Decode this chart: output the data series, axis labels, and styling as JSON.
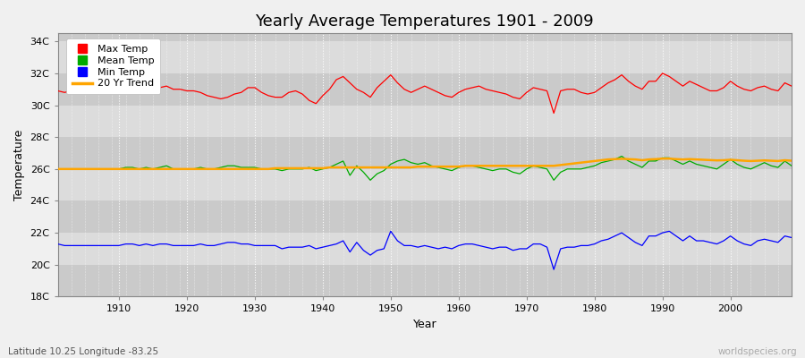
{
  "title": "Yearly Average Temperatures 1901 - 2009",
  "xlabel": "Year",
  "ylabel": "Temperature",
  "bottom_left": "Latitude 10.25 Longitude -83.25",
  "bottom_right": "worldspecies.org",
  "years_start": 1901,
  "years_end": 2009,
  "yticks": [
    18,
    20,
    22,
    24,
    26,
    28,
    30,
    32,
    34
  ],
  "ytick_labels": [
    "18C",
    "20C",
    "22C",
    "24C",
    "26C",
    "28C",
    "30C",
    "32C",
    "34C"
  ],
  "xticks": [
    1910,
    1920,
    1930,
    1940,
    1950,
    1960,
    1970,
    1980,
    1990,
    2000
  ],
  "ylim": [
    18,
    34.5
  ],
  "xlim": [
    1901,
    2009
  ],
  "bg_color": "#f0f0f0",
  "band_light": "#dcdcdc",
  "band_dark": "#cacaca",
  "grid_color_v": "#ffffff",
  "max_temp_color": "#ff0000",
  "mean_temp_color": "#00aa00",
  "min_temp_color": "#0000ff",
  "trend_color": "#ffa500",
  "legend_labels": [
    "Max Temp",
    "Mean Temp",
    "Min Temp",
    "20 Yr Trend"
  ],
  "legend_colors": [
    "#ff0000",
    "#00aa00",
    "#0000ff",
    "#ffa500"
  ],
  "max_temp": [
    30.9,
    30.8,
    30.9,
    30.9,
    30.9,
    30.8,
    30.9,
    30.9,
    30.8,
    30.9,
    31.0,
    31.1,
    30.9,
    31.2,
    31.0,
    31.1,
    31.2,
    31.0,
    31.0,
    30.9,
    30.9,
    30.8,
    30.6,
    30.5,
    30.4,
    30.5,
    30.7,
    30.8,
    31.1,
    31.1,
    30.8,
    30.6,
    30.5,
    30.5,
    30.8,
    30.9,
    30.7,
    30.3,
    30.1,
    30.6,
    31.0,
    31.6,
    31.8,
    31.4,
    31.0,
    30.8,
    30.5,
    31.1,
    31.5,
    31.9,
    31.4,
    31.0,
    30.8,
    31.0,
    31.2,
    31.0,
    30.8,
    30.6,
    30.5,
    30.8,
    31.0,
    31.1,
    31.2,
    31.0,
    30.9,
    30.8,
    30.7,
    30.5,
    30.4,
    30.8,
    31.1,
    31.0,
    30.9,
    29.5,
    30.9,
    31.0,
    31.0,
    30.8,
    30.7,
    30.8,
    31.1,
    31.4,
    31.6,
    31.9,
    31.5,
    31.2,
    31.0,
    31.5,
    31.5,
    32.0,
    31.8,
    31.5,
    31.2,
    31.5,
    31.3,
    31.1,
    30.9,
    30.9,
    31.1,
    31.5,
    31.2,
    31.0,
    30.9,
    31.1,
    31.2,
    31.0,
    30.9,
    31.4,
    31.2
  ],
  "mean_temp": [
    26.0,
    26.0,
    26.0,
    26.0,
    26.0,
    26.0,
    26.0,
    26.0,
    26.0,
    26.0,
    26.1,
    26.1,
    26.0,
    26.1,
    26.0,
    26.1,
    26.2,
    26.0,
    26.0,
    26.0,
    26.0,
    26.1,
    26.0,
    26.0,
    26.1,
    26.2,
    26.2,
    26.1,
    26.1,
    26.1,
    26.0,
    26.0,
    26.0,
    25.9,
    26.0,
    26.0,
    26.0,
    26.1,
    25.9,
    26.0,
    26.1,
    26.3,
    26.5,
    25.6,
    26.2,
    25.8,
    25.3,
    25.7,
    25.9,
    26.3,
    26.5,
    26.6,
    26.4,
    26.3,
    26.4,
    26.2,
    26.1,
    26.0,
    25.9,
    26.1,
    26.2,
    26.2,
    26.1,
    26.0,
    25.9,
    26.0,
    26.0,
    25.8,
    25.7,
    26.0,
    26.2,
    26.1,
    26.0,
    25.3,
    25.8,
    26.0,
    26.0,
    26.0,
    26.1,
    26.2,
    26.4,
    26.5,
    26.6,
    26.8,
    26.5,
    26.3,
    26.1,
    26.5,
    26.5,
    26.7,
    26.7,
    26.5,
    26.3,
    26.5,
    26.3,
    26.2,
    26.1,
    26.0,
    26.3,
    26.6,
    26.3,
    26.1,
    26.0,
    26.2,
    26.4,
    26.2,
    26.1,
    26.5,
    26.2
  ],
  "min_temp": [
    21.3,
    21.2,
    21.2,
    21.2,
    21.2,
    21.2,
    21.2,
    21.2,
    21.2,
    21.2,
    21.3,
    21.3,
    21.2,
    21.3,
    21.2,
    21.3,
    21.3,
    21.2,
    21.2,
    21.2,
    21.2,
    21.3,
    21.2,
    21.2,
    21.3,
    21.4,
    21.4,
    21.3,
    21.3,
    21.2,
    21.2,
    21.2,
    21.2,
    21.0,
    21.1,
    21.1,
    21.1,
    21.2,
    21.0,
    21.1,
    21.2,
    21.3,
    21.5,
    20.8,
    21.4,
    20.9,
    20.6,
    20.9,
    21.0,
    22.1,
    21.5,
    21.2,
    21.2,
    21.1,
    21.2,
    21.1,
    21.0,
    21.1,
    21.0,
    21.2,
    21.3,
    21.3,
    21.2,
    21.1,
    21.0,
    21.1,
    21.1,
    20.9,
    21.0,
    21.0,
    21.3,
    21.3,
    21.1,
    19.7,
    21.0,
    21.1,
    21.1,
    21.2,
    21.2,
    21.3,
    21.5,
    21.6,
    21.8,
    22.0,
    21.7,
    21.4,
    21.2,
    21.8,
    21.8,
    22.0,
    22.1,
    21.8,
    21.5,
    21.8,
    21.5,
    21.5,
    21.4,
    21.3,
    21.5,
    21.8,
    21.5,
    21.3,
    21.2,
    21.5,
    21.6,
    21.5,
    21.4,
    21.8,
    21.7
  ],
  "trend": [
    26.0,
    26.0,
    26.0,
    26.0,
    26.0,
    26.0,
    26.0,
    26.0,
    26.0,
    26.0,
    26.0,
    26.0,
    26.0,
    26.0,
    26.0,
    26.0,
    26.0,
    26.0,
    26.0,
    26.0,
    26.0,
    26.0,
    26.0,
    26.0,
    26.0,
    26.0,
    26.0,
    26.0,
    26.0,
    26.0,
    26.0,
    26.0,
    26.05,
    26.05,
    26.05,
    26.05,
    26.05,
    26.05,
    26.05,
    26.05,
    26.1,
    26.1,
    26.1,
    26.1,
    26.1,
    26.1,
    26.1,
    26.1,
    26.1,
    26.1,
    26.1,
    26.1,
    26.1,
    26.15,
    26.15,
    26.15,
    26.15,
    26.15,
    26.15,
    26.15,
    26.2,
    26.2,
    26.2,
    26.2,
    26.2,
    26.2,
    26.2,
    26.2,
    26.2,
    26.2,
    26.2,
    26.2,
    26.2,
    26.2,
    26.25,
    26.3,
    26.35,
    26.4,
    26.45,
    26.5,
    26.55,
    26.6,
    26.62,
    26.64,
    26.62,
    26.6,
    26.55,
    26.6,
    26.62,
    26.65,
    26.65,
    26.62,
    26.6,
    26.62,
    26.6,
    26.58,
    26.56,
    26.54,
    26.55,
    26.58,
    26.55,
    26.52,
    26.5,
    26.52,
    26.54,
    26.52,
    26.5,
    26.55,
    26.52
  ]
}
